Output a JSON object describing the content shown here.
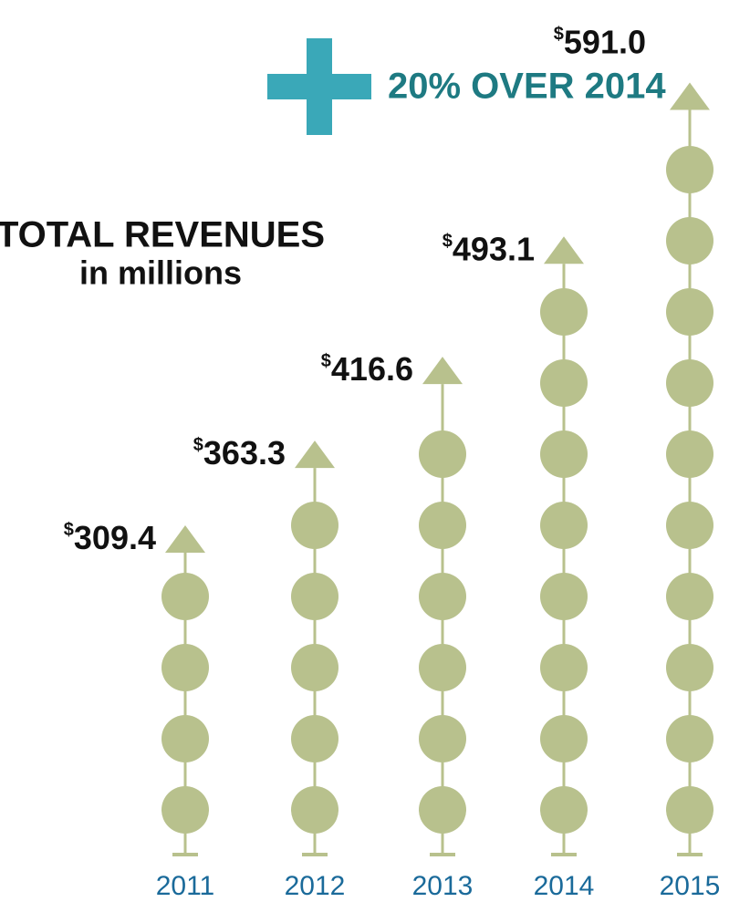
{
  "chart_data": {
    "type": "pictograph",
    "title": "TOTAL REVENUES",
    "subtitle": "in millions",
    "annotation": "20% OVER 2014",
    "categories": [
      "2011",
      "2012",
      "2013",
      "2014",
      "2015"
    ],
    "values": [
      309.4,
      363.3,
      416.6,
      493.1,
      591.0
    ],
    "value_labels": [
      "$309.4",
      "$363.3",
      "$416.6",
      "$493.1",
      "$591.0"
    ],
    "color": "#b8c18d",
    "ylim": [
      100,
      600
    ]
  }
}
